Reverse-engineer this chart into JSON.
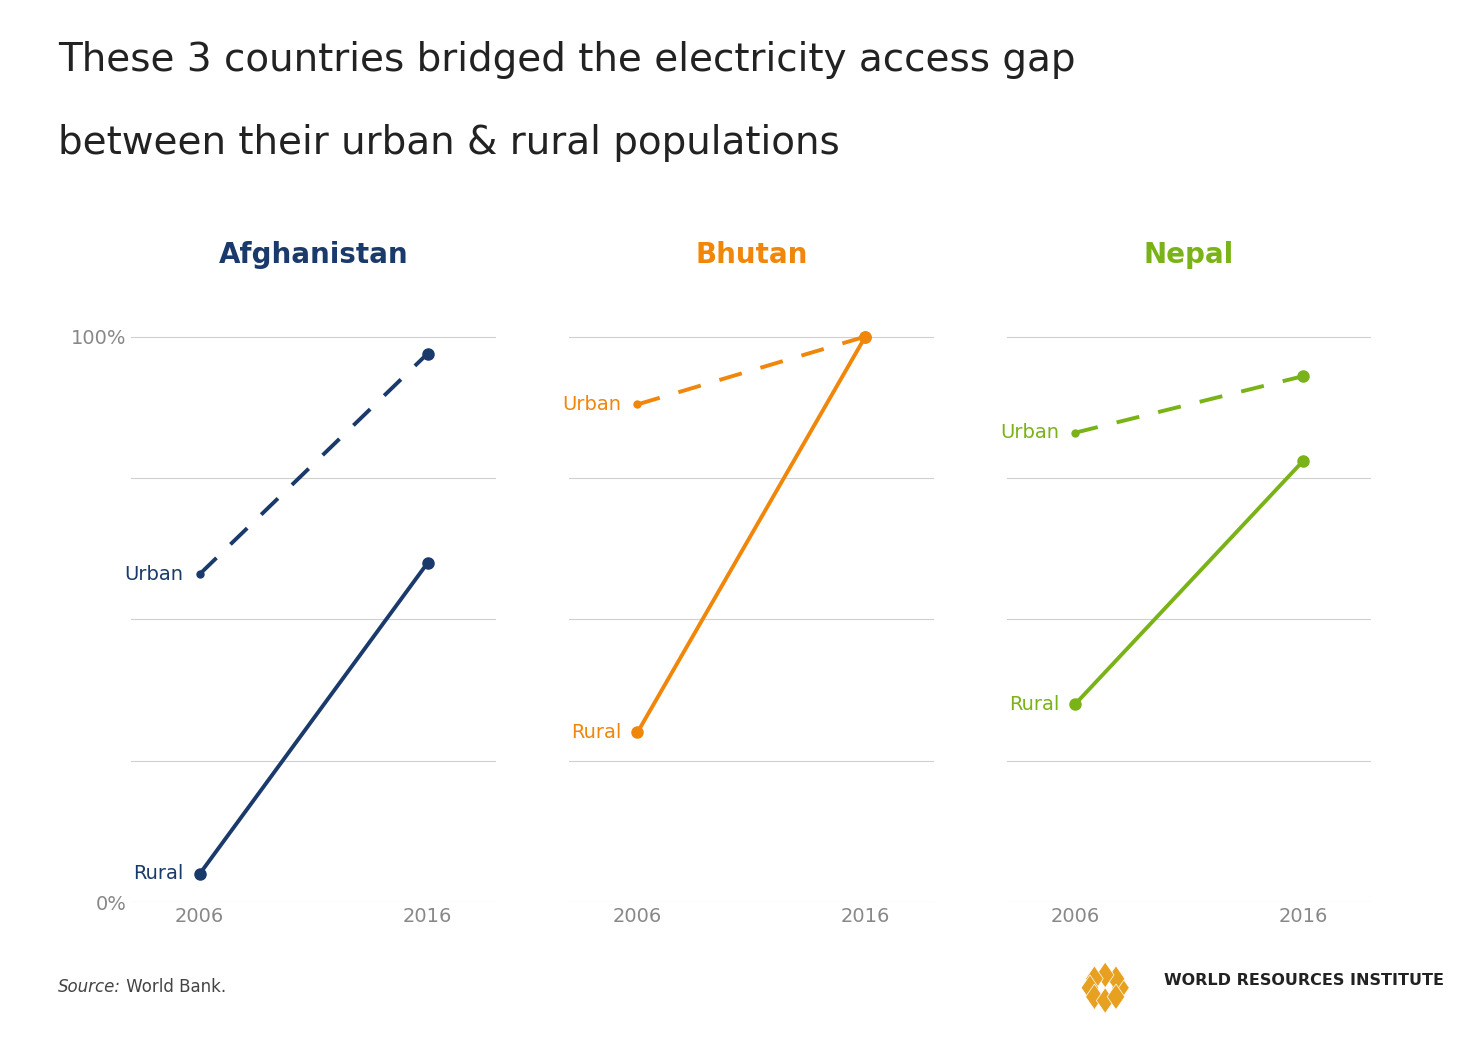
{
  "title_line1": "These 3 countries bridged the electricity access gap",
  "title_line2": "between their urban & rural populations",
  "title_fontsize": 28,
  "countries": [
    "Afghanistan",
    "Bhutan",
    "Nepal"
  ],
  "country_colors": [
    "#1a3a6b",
    "#f0860a",
    "#7ab317"
  ],
  "years": [
    2006,
    2016
  ],
  "urban": {
    "Afghanistan": [
      0.58,
      0.97
    ],
    "Bhutan": [
      0.88,
      1.0
    ],
    "Nepal": [
      0.83,
      0.93
    ]
  },
  "rural": {
    "Afghanistan": [
      0.05,
      0.6
    ],
    "Bhutan": [
      0.3,
      1.0
    ],
    "Nepal": [
      0.35,
      0.78
    ]
  },
  "ylim": [
    0,
    1.1
  ],
  "yticks": [
    0,
    0.25,
    0.5,
    0.75,
    1.0
  ],
  "ytick_labels": [
    "0%",
    "",
    "",
    "",
    "100%"
  ],
  "background_color": "#ffffff",
  "source_italic": "Source:",
  "source_normal": " World Bank.",
  "wri_text": "WORLD RESOURCES INSTITUTE",
  "grid_color": "#d0d0d0",
  "tick_color": "#888888",
  "linewidth": 2.8,
  "markersize": 8,
  "gold_color": "#e8a020"
}
